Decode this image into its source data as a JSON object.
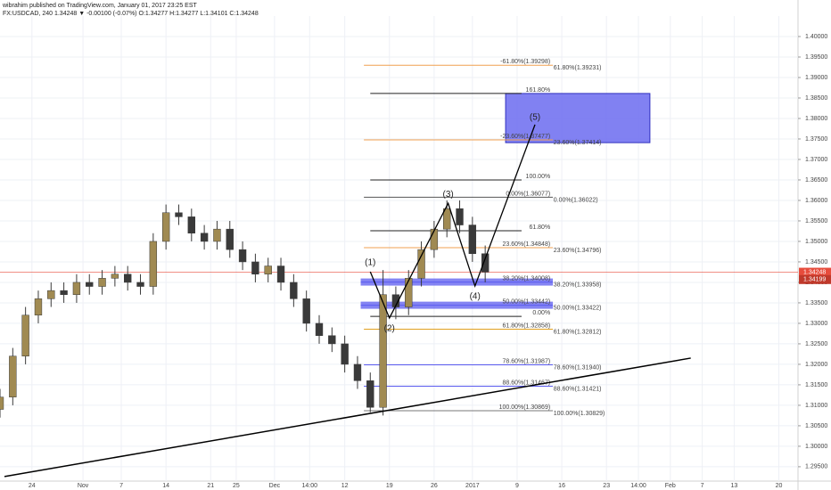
{
  "chart_data": {
    "type": "candlestick",
    "title": "wibrahim published on TradingView.com, January 01, 2017 23:25 EST",
    "subtitle": "FX:USDCAD, 240  1.34248 ▼ -0.00100 (-0.07%)  O:1.34277 H:1.34277 L:1.34101 C:1.34248",
    "x": [
      0,
      2,
      4,
      6,
      8,
      10,
      12,
      14,
      16,
      18,
      20,
      22,
      24,
      26,
      28,
      30,
      32,
      34,
      36,
      38,
      40,
      42,
      44,
      46,
      48,
      50,
      52,
      54,
      56,
      58,
      60,
      62,
      64,
      66,
      68,
      70,
      72,
      74,
      76
    ],
    "open": [
      1.309,
      1.312,
      1.322,
      1.332,
      1.336,
      1.338,
      1.337,
      1.34,
      1.339,
      1.341,
      1.342,
      1.34,
      1.339,
      1.35,
      1.357,
      1.356,
      1.352,
      1.35,
      1.353,
      1.348,
      1.345,
      1.342,
      1.344,
      1.34,
      1.336,
      1.33,
      1.327,
      1.325,
      1.32,
      1.316,
      1.3095,
      1.337,
      1.334,
      1.341,
      1.348,
      1.353,
      1.358,
      1.354,
      1.347
    ],
    "high": [
      1.314,
      1.324,
      1.334,
      1.338,
      1.34,
      1.34,
      1.342,
      1.342,
      1.343,
      1.344,
      1.344,
      1.342,
      1.352,
      1.359,
      1.359,
      1.358,
      1.354,
      1.355,
      1.355,
      1.35,
      1.347,
      1.346,
      1.346,
      1.342,
      1.338,
      1.332,
      1.329,
      1.327,
      1.322,
      1.318,
      1.343,
      1.339,
      1.343,
      1.35,
      1.355,
      1.36,
      1.36,
      1.356,
      1.349
    ],
    "low": [
      1.307,
      1.31,
      1.32,
      1.33,
      1.334,
      1.335,
      1.335,
      1.337,
      1.337,
      1.339,
      1.338,
      1.337,
      1.337,
      1.348,
      1.354,
      1.35,
      1.348,
      1.348,
      1.346,
      1.343,
      1.34,
      1.34,
      1.338,
      1.334,
      1.328,
      1.325,
      1.323,
      1.318,
      1.314,
      1.3083,
      1.3075,
      1.331,
      1.332,
      1.339,
      1.346,
      1.351,
      1.352,
      1.345,
      1.34
    ],
    "close": [
      1.312,
      1.322,
      1.332,
      1.336,
      1.338,
      1.337,
      1.34,
      1.339,
      1.341,
      1.342,
      1.34,
      1.339,
      1.35,
      1.357,
      1.356,
      1.352,
      1.35,
      1.353,
      1.348,
      1.345,
      1.342,
      1.344,
      1.34,
      1.336,
      1.33,
      1.327,
      1.325,
      1.32,
      1.316,
      1.3095,
      1.337,
      1.334,
      1.341,
      1.348,
      1.353,
      1.358,
      1.354,
      1.347,
      1.3425
    ],
    "up_color": "#a08a52",
    "down_color": "#3a3a3a",
    "xlim": [
      0,
      125
    ],
    "xticks": [
      {
        "value": 5,
        "label": "24"
      },
      {
        "value": 13,
        "label": "Nov"
      },
      {
        "value": 19,
        "label": "7"
      },
      {
        "value": 26,
        "label": "14"
      },
      {
        "value": 33,
        "label": "21"
      },
      {
        "value": 37,
        "label": "25"
      },
      {
        "value": 43,
        "label": "Dec"
      },
      {
        "value": 48.5,
        "label": "14:00"
      },
      {
        "value": 54,
        "label": "12"
      },
      {
        "value": 61,
        "label": "19"
      },
      {
        "value": 68,
        "label": "26"
      },
      {
        "value": 74,
        "label": "2017"
      },
      {
        "value": 81,
        "label": "9"
      },
      {
        "value": 88,
        "label": "16"
      },
      {
        "value": 95,
        "label": "23"
      },
      {
        "value": 100,
        "label": "14:00"
      },
      {
        "value": 105,
        "label": "Feb"
      },
      {
        "value": 110,
        "label": "7"
      },
      {
        "value": 115,
        "label": "13"
      },
      {
        "value": 122,
        "label": "20"
      }
    ],
    "ylim": [
      1.2915,
      1.405
    ],
    "yticks": [
      {
        "value": 1.295,
        "label": "1.29500"
      },
      {
        "value": 1.3,
        "label": "1.30000"
      },
      {
        "value": 1.305,
        "label": "1.30500"
      },
      {
        "value": 1.31,
        "label": "1.31000"
      },
      {
        "value": 1.315,
        "label": "1.31500"
      },
      {
        "value": 1.32,
        "label": "1.32000"
      },
      {
        "value": 1.325,
        "label": "1.32500"
      },
      {
        "value": 1.33,
        "label": "1.33000"
      },
      {
        "value": 1.335,
        "label": "1.33500"
      },
      {
        "value": 1.34,
        "label": "1.34000"
      },
      {
        "value": 1.345,
        "label": "1.34500"
      },
      {
        "value": 1.35,
        "label": "1.35000"
      },
      {
        "value": 1.355,
        "label": "1.35500"
      },
      {
        "value": 1.36,
        "label": "1.36000"
      },
      {
        "value": 1.365,
        "label": "1.36500"
      },
      {
        "value": 1.37,
        "label": "1.37000"
      },
      {
        "value": 1.375,
        "label": "1.37500"
      },
      {
        "value": 1.38,
        "label": "1.38000"
      },
      {
        "value": 1.385,
        "label": "1.38500"
      },
      {
        "value": 1.39,
        "label": "1.39000"
      },
      {
        "value": 1.395,
        "label": "1.39500"
      },
      {
        "value": 1.4,
        "label": "1.40000"
      }
    ],
    "grid": true,
    "price_tags": [
      {
        "value": 1.34248,
        "color": "#e74c3c"
      },
      {
        "value": 1.34199,
        "color": "#c0392b"
      }
    ],
    "trendline": {
      "x": [
        0.7,
        108.2
      ],
      "y": [
        1.29261,
        1.32152
      ],
      "color": "#000000"
    },
    "waves": {
      "x": [
        58,
        61,
        70.2,
        74.4,
        83.8
      ],
      "y": [
        1.3426,
        1.3313,
        1.3593,
        1.3391,
        1.3785
      ],
      "labels": [
        "(1)",
        "(2)",
        "(3)",
        "(4)",
        "(5)"
      ],
      "color": "#000000"
    },
    "target_box": {
      "x": [
        79.2,
        101.8
      ],
      "y": [
        1.3741,
        1.3861
      ],
      "color": "#6b6bf0"
    },
    "fib_levels": [
      {
        "price": 1.39298,
        "x": [
          57,
          86.6
        ],
        "label": "-61.80%(1.39298)",
        "label2": "61.80%(1.39231)",
        "color": "#f0a050"
      },
      {
        "price": 1.3861,
        "x": [
          58,
          81.7
        ],
        "label": "161.80%",
        "color": "#222222"
      },
      {
        "price": 1.37477,
        "x": [
          57,
          86.6
        ],
        "label": "-23.60%(1.37477)",
        "label2": "23.60%(1.37414)",
        "color": "#f0a050"
      },
      {
        "price": 1.365,
        "x": [
          58,
          81.7
        ],
        "label": "100.00%",
        "color": "#222222"
      },
      {
        "price": 1.36077,
        "x": [
          57,
          86.6
        ],
        "label": "0.00%(1.36077)",
        "label2": "0.00%(1.36022)",
        "color": "#555555"
      },
      {
        "price": 1.3526,
        "x": [
          58,
          81.7
        ],
        "label": "61.80%",
        "color": "#222222"
      },
      {
        "price": 1.34848,
        "x": [
          57,
          86.6
        ],
        "label": "23.60%(1.34848)",
        "label2": "23.60%(1.34796)",
        "color": "#f0a050"
      },
      {
        "price": 1.34008,
        "x": [
          56.5,
          86.6
        ],
        "label": "38.20%(1.34008)",
        "label2": "38.20%(1.33958)",
        "color": "#5b5bef",
        "band": true
      },
      {
        "price": 1.33442,
        "x": [
          56.5,
          86.6
        ],
        "label": "50.00%(1.33442)",
        "label2": "50.00%(1.33422)",
        "color": "#5b5bef",
        "band": true
      },
      {
        "price": 1.3317,
        "x": [
          58,
          81.7
        ],
        "label": "0.00%",
        "color": "#222222"
      },
      {
        "price": 1.32858,
        "x": [
          57,
          86.6
        ],
        "label": "61.80%(1.32858)",
        "label2": "61.80%(1.32812)",
        "color": "#e0a020"
      },
      {
        "price": 1.31987,
        "x": [
          57,
          86.6
        ],
        "label": "78.60%(1.31987)",
        "label2": "78.60%(1.31940)",
        "color": "#5b5bef"
      },
      {
        "price": 1.31467,
        "x": [
          57,
          86.6
        ],
        "label": "88.60%(1.31467)",
        "label2": "88.60%(1.31421)",
        "color": "#5b5bef"
      },
      {
        "price": 1.30869,
        "x": [
          57,
          86.6
        ],
        "label": "100.00%(1.30869)",
        "label2": "100.00%(1.30829)",
        "color": "#777777"
      }
    ]
  }
}
